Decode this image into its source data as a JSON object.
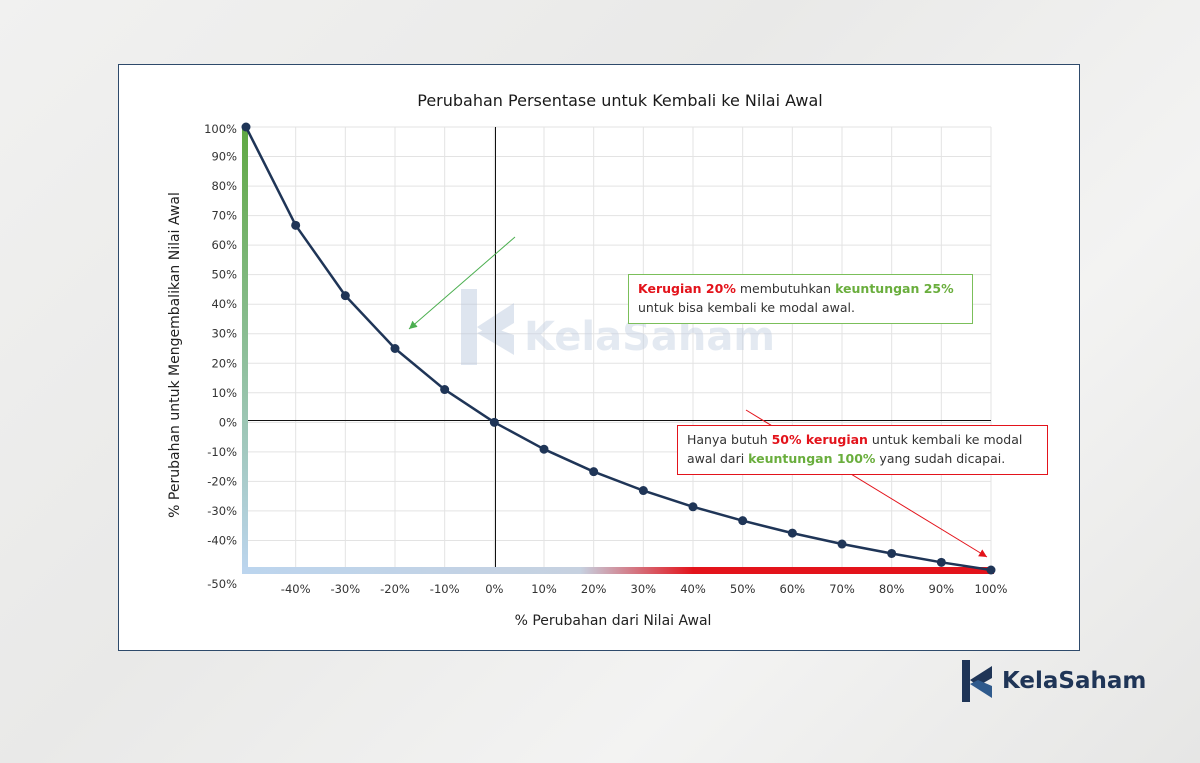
{
  "chart_data": {
    "type": "line",
    "title": "Perubahan Persentase untuk Kembali ke Nilai Awal",
    "xlabel": "% Perubahan dari Nilai Awal",
    "ylabel": "% Perubahan untuk Mengembalikan Nilai Awal",
    "x_tick_labels": [
      "-40%",
      "-30%",
      "-20%",
      "-10%",
      "0%",
      "10%",
      "20%",
      "30%",
      "40%",
      "50%",
      "60%",
      "70%",
      "80%",
      "90%",
      "100%"
    ],
    "y_tick_labels": [
      "100%",
      "90%",
      "80%",
      "70%",
      "60%",
      "50%",
      "40%",
      "30%",
      "20%",
      "10%",
      "0%",
      "-10%",
      "-20%",
      "-30%",
      "-40%",
      "-50%"
    ],
    "x": [
      -50,
      -40,
      -30,
      -20,
      -10,
      0,
      10,
      20,
      30,
      40,
      50,
      60,
      70,
      80,
      90,
      100
    ],
    "y": [
      100,
      66.7,
      42.9,
      25,
      11.1,
      0,
      -9.1,
      -16.7,
      -23.1,
      -28.6,
      -33.3,
      -37.5,
      -41.2,
      -44.4,
      -47.4,
      -50
    ],
    "xlim": [
      -50,
      100
    ],
    "ylim": [
      -50,
      100
    ],
    "grid": true,
    "line_color": "#1f3557",
    "y_axis_gradient": [
      "#5fa842",
      "#bcd5ee"
    ],
    "x_axis_gradient": [
      "#bcd5ee",
      "#e3131b"
    ]
  },
  "annotations": {
    "a1": {
      "loss_text": "Kerugian 20%",
      "mid_text": " membutuhkan ",
      "gain_text": "keuntungan 25%",
      "line2": "untuk bisa kembali ke modal awal."
    },
    "a2": {
      "pre_text": "Hanya butuh ",
      "loss_text": "50% kerugian",
      "mid_text": " untuk kembali ke modal awal dari ",
      "gain_text": "keuntungan 100%",
      "post_text": " yang sudah dicapai."
    }
  },
  "watermark": "KelaSaham",
  "brand": {
    "name": "KelaSaham",
    "color": "#1f3557"
  }
}
